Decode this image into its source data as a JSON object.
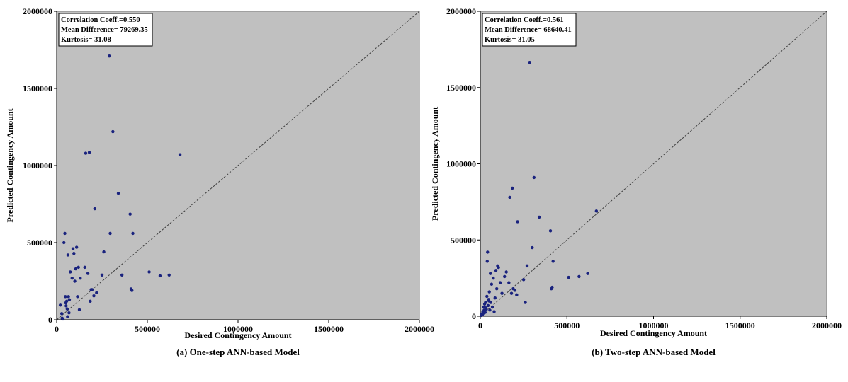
{
  "chart_data": [
    {
      "type": "scatter",
      "caption": "(a) One-step ANN-based Model",
      "xlabel": "Desired Contingency Amount",
      "ylabel": "Predicted Contingency Amount",
      "xlim": [
        0,
        2000000
      ],
      "ylim": [
        0,
        2000000
      ],
      "xticks": [
        "0",
        "500000",
        "1000000",
        "1500000",
        "2000000"
      ],
      "yticks": [
        "0",
        "500000",
        "1000000",
        "1500000",
        "2000000"
      ],
      "background": "#c0c0c0",
      "point_color": "#1a237e",
      "reference_line": "y = x",
      "stats": [
        "Correlation Coeff.=0.550",
        "Mean Difference= 79269.35",
        "Kurtosis= 31.08"
      ],
      "points": [
        [
          20000,
          95000
        ],
        [
          28000,
          40000
        ],
        [
          30000,
          10000
        ],
        [
          35000,
          5000
        ],
        [
          40000,
          500000
        ],
        [
          45000,
          560000
        ],
        [
          48000,
          150000
        ],
        [
          50000,
          110000
        ],
        [
          52000,
          90000
        ],
        [
          55000,
          120000
        ],
        [
          58000,
          70000
        ],
        [
          60000,
          20000
        ],
        [
          62000,
          420000
        ],
        [
          65000,
          150000
        ],
        [
          68000,
          45000
        ],
        [
          70000,
          130000
        ],
        [
          75000,
          310000
        ],
        [
          85000,
          270000
        ],
        [
          90000,
          460000
        ],
        [
          95000,
          430000
        ],
        [
          100000,
          250000
        ],
        [
          105000,
          330000
        ],
        [
          110000,
          470000
        ],
        [
          115000,
          150000
        ],
        [
          120000,
          340000
        ],
        [
          125000,
          65000
        ],
        [
          130000,
          270000
        ],
        [
          155000,
          340000
        ],
        [
          160000,
          1080000
        ],
        [
          172000,
          300000
        ],
        [
          180000,
          1085000
        ],
        [
          185000,
          120000
        ],
        [
          190000,
          195000
        ],
        [
          195000,
          195000
        ],
        [
          205000,
          155000
        ],
        [
          210000,
          720000
        ],
        [
          220000,
          175000
        ],
        [
          250000,
          290000
        ],
        [
          260000,
          440000
        ],
        [
          290000,
          1710000
        ],
        [
          295000,
          560000
        ],
        [
          310000,
          1220000
        ],
        [
          340000,
          820000
        ],
        [
          360000,
          290000
        ],
        [
          405000,
          685000
        ],
        [
          410000,
          200000
        ],
        [
          415000,
          190000
        ],
        [
          420000,
          560000
        ],
        [
          510000,
          310000
        ],
        [
          570000,
          285000
        ],
        [
          620000,
          290000
        ],
        [
          680000,
          1070000
        ]
      ]
    },
    {
      "type": "scatter",
      "caption": "(b) Two-step ANN-based Model",
      "xlabel": "Desired Contingency Amount",
      "ylabel": "Predicted Contingency Amount",
      "xlim": [
        0,
        2000000
      ],
      "ylim": [
        0,
        2000000
      ],
      "xticks": [
        "0",
        "500000",
        "1000000",
        "1500000",
        "2000000"
      ],
      "yticks": [
        "0",
        "500000",
        "1000000",
        "1500000",
        "2000000"
      ],
      "background": "#c0c0c0",
      "point_color": "#1a237e",
      "reference_line": "y = x",
      "stats": [
        "Correlation Coeff.=0.561",
        "Mean Difference= 68640.41",
        "Kurtosis= 31.05"
      ],
      "points": [
        [
          5000,
          5000
        ],
        [
          8000,
          15000
        ],
        [
          12000,
          10000
        ],
        [
          15000,
          30000
        ],
        [
          18000,
          20000
        ],
        [
          20000,
          60000
        ],
        [
          22000,
          40000
        ],
        [
          25000,
          80000
        ],
        [
          28000,
          25000
        ],
        [
          30000,
          90000
        ],
        [
          32000,
          55000
        ],
        [
          35000,
          45000
        ],
        [
          38000,
          130000
        ],
        [
          40000,
          360000
        ],
        [
          42000,
          420000
        ],
        [
          45000,
          70000
        ],
        [
          48000,
          110000
        ],
        [
          50000,
          100000
        ],
        [
          52000,
          160000
        ],
        [
          55000,
          40000
        ],
        [
          58000,
          280000
        ],
        [
          60000,
          90000
        ],
        [
          65000,
          210000
        ],
        [
          70000,
          60000
        ],
        [
          75000,
          250000
        ],
        [
          80000,
          30000
        ],
        [
          85000,
          120000
        ],
        [
          90000,
          300000
        ],
        [
          95000,
          180000
        ],
        [
          100000,
          330000
        ],
        [
          105000,
          320000
        ],
        [
          115000,
          220000
        ],
        [
          125000,
          150000
        ],
        [
          140000,
          260000
        ],
        [
          150000,
          290000
        ],
        [
          165000,
          220000
        ],
        [
          170000,
          780000
        ],
        [
          180000,
          150000
        ],
        [
          185000,
          840000
        ],
        [
          190000,
          180000
        ],
        [
          200000,
          170000
        ],
        [
          210000,
          140000
        ],
        [
          215000,
          620000
        ],
        [
          250000,
          240000
        ],
        [
          260000,
          90000
        ],
        [
          270000,
          330000
        ],
        [
          285000,
          1665000
        ],
        [
          300000,
          450000
        ],
        [
          310000,
          910000
        ],
        [
          340000,
          650000
        ],
        [
          405000,
          560000
        ],
        [
          410000,
          180000
        ],
        [
          415000,
          190000
        ],
        [
          420000,
          360000
        ],
        [
          510000,
          255000
        ],
        [
          570000,
          260000
        ],
        [
          620000,
          280000
        ],
        [
          670000,
          690000
        ]
      ]
    }
  ]
}
